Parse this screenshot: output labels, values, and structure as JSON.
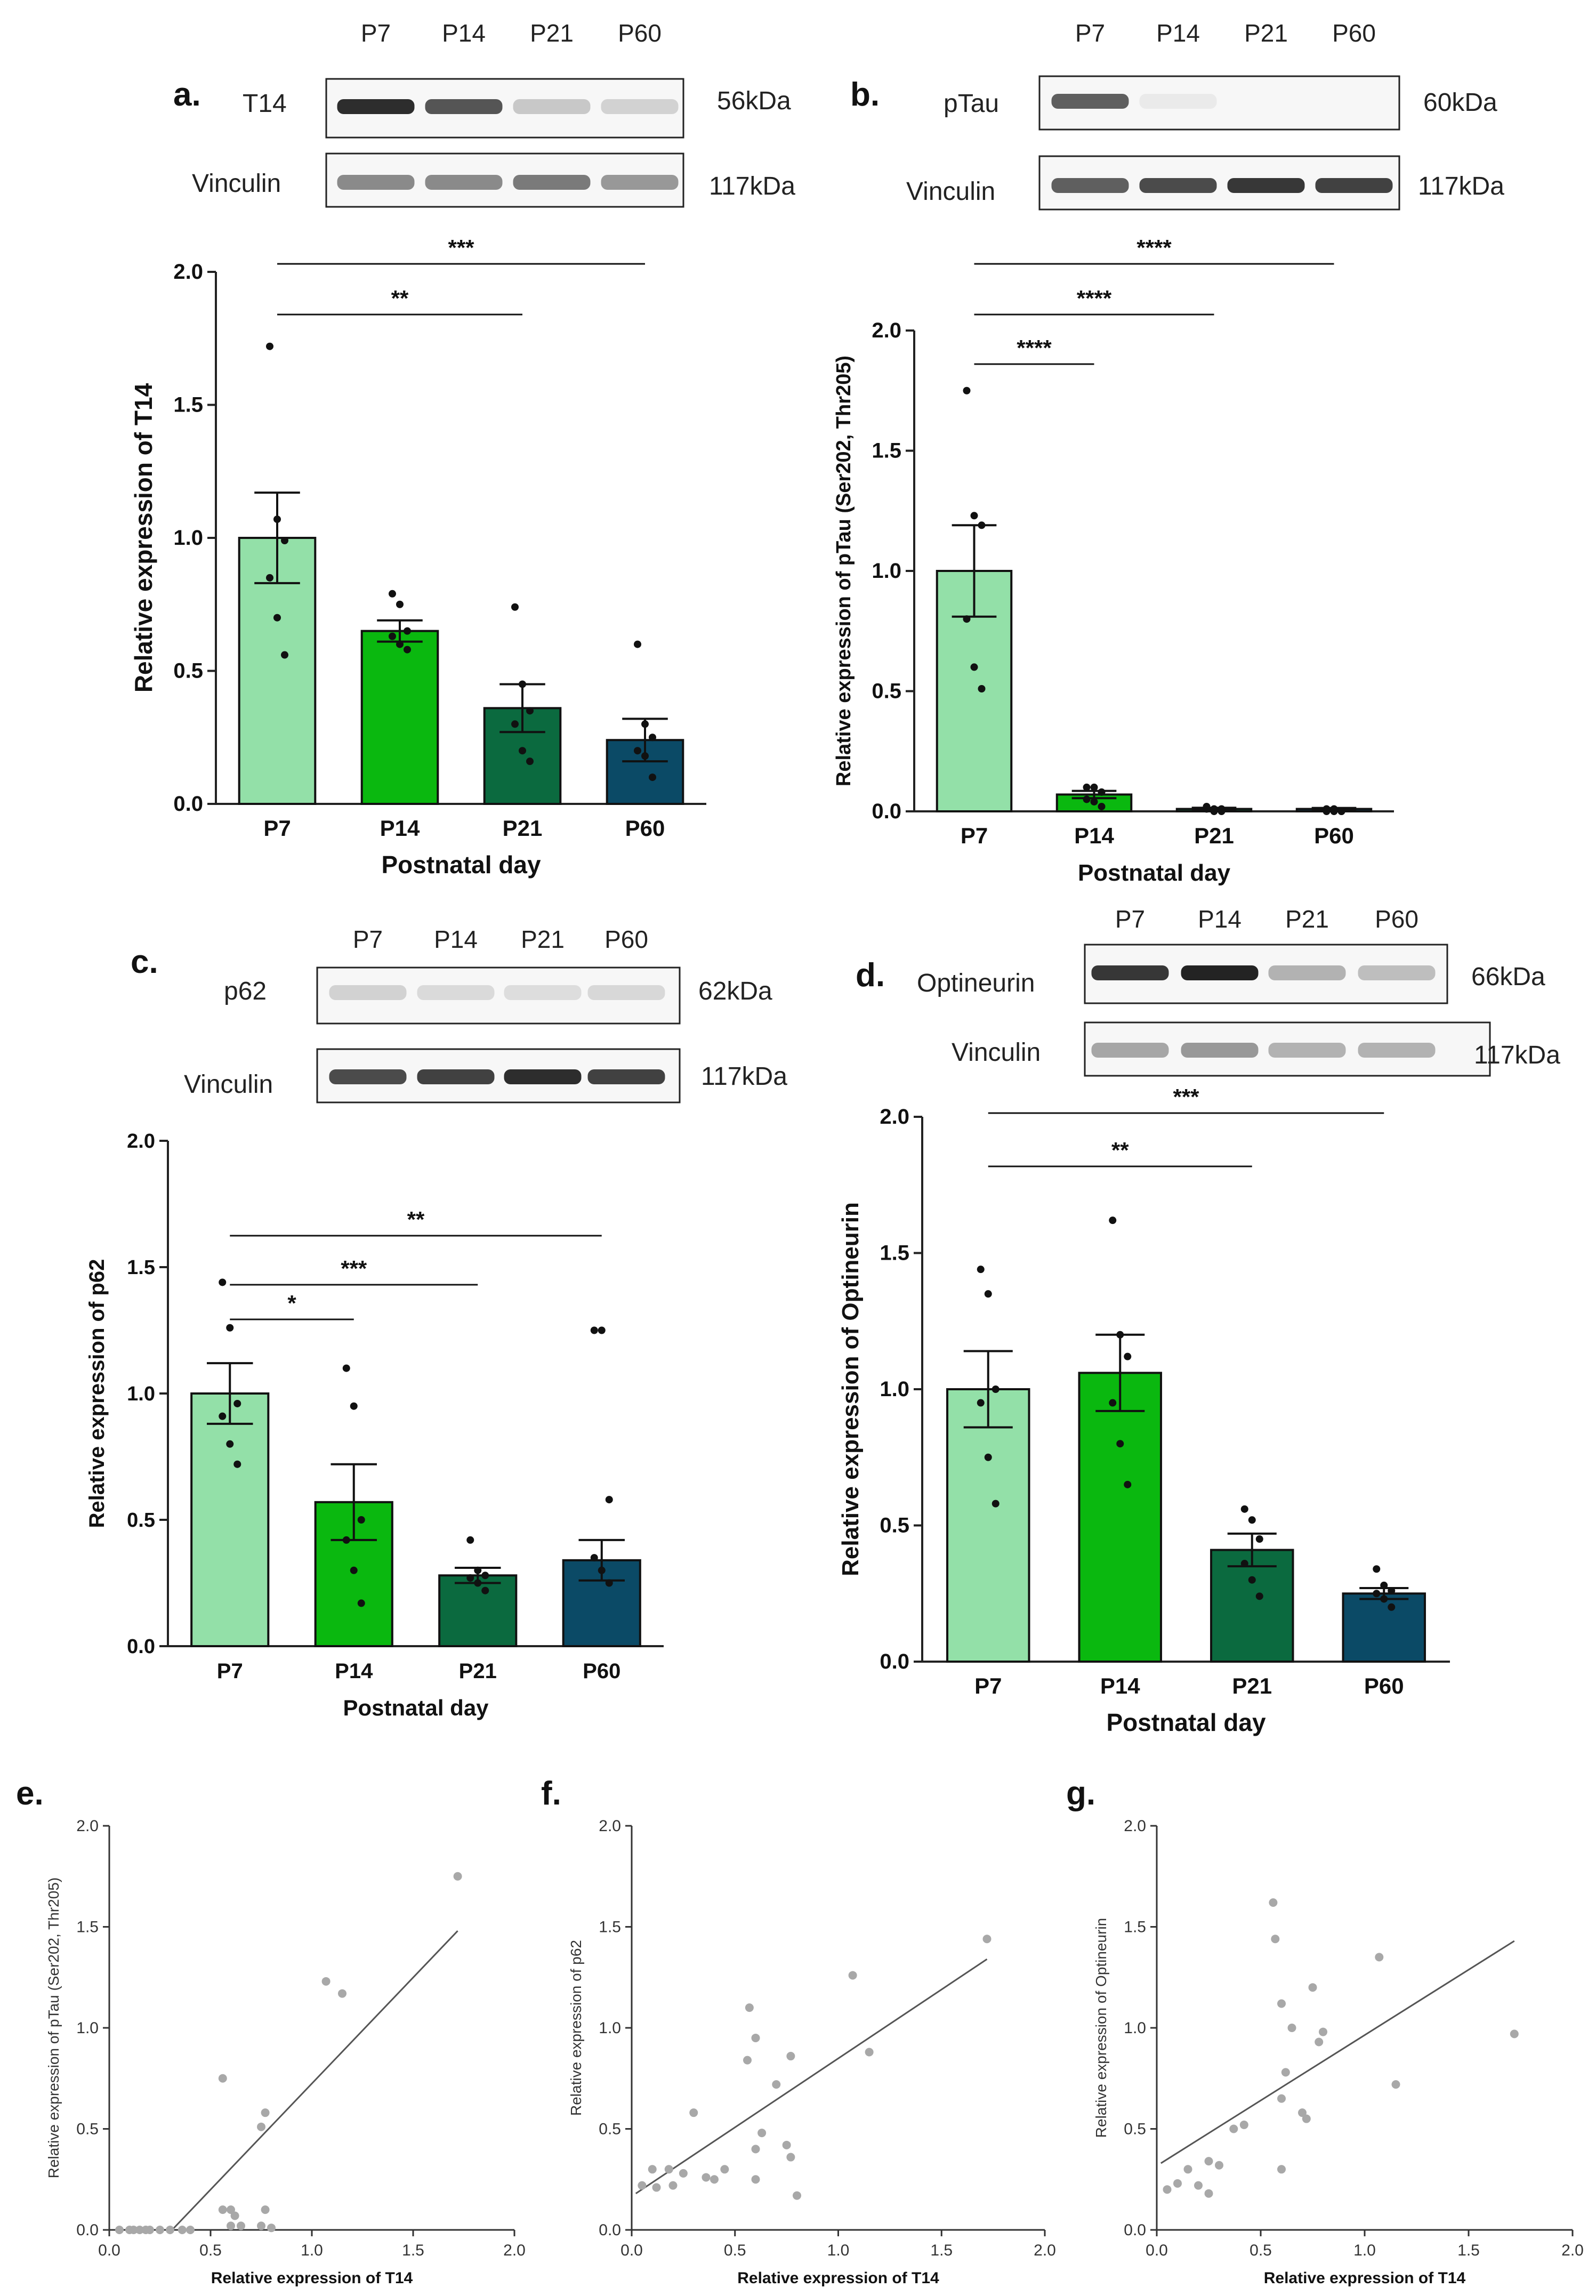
{
  "panels": {
    "a": {
      "label": "a.",
      "lanes": [
        "P7",
        "P14",
        "P21",
        "P60"
      ],
      "blots": [
        {
          "name": "T14",
          "kda": "56kDa",
          "intensity": [
            0.95,
            0.75,
            0.3,
            0.25
          ]
        },
        {
          "name": "Vinculin",
          "kda": "117kDa",
          "intensity": [
            0.55,
            0.55,
            0.6,
            0.5
          ]
        }
      ]
    },
    "b": {
      "label": "b.",
      "lanes": [
        "P7",
        "P14",
        "P21",
        "P60"
      ],
      "blots": [
        {
          "name": "pTau",
          "kda": "60kDa",
          "intensity": [
            0.7,
            0.08,
            0.0,
            0.0
          ]
        },
        {
          "name": "Vinculin",
          "kda": "117kDa",
          "intensity": [
            0.7,
            0.8,
            0.9,
            0.85
          ]
        }
      ]
    },
    "c": {
      "label": "c.",
      "lanes": [
        "P7",
        "P14",
        "P21",
        "P60"
      ],
      "blots": [
        {
          "name": "p62",
          "kda": "62kDa",
          "intensity": [
            0.25,
            0.2,
            0.18,
            0.22
          ]
        },
        {
          "name": "Vinculin",
          "kda": "117kDa",
          "intensity": [
            0.8,
            0.85,
            0.95,
            0.85
          ]
        }
      ]
    },
    "d": {
      "label": "d.",
      "lanes": [
        "P7",
        "P14",
        "P21",
        "P60"
      ],
      "blots": [
        {
          "name": "Optineurin",
          "kda": "66kDa",
          "intensity": [
            0.9,
            1.0,
            0.4,
            0.35
          ]
        },
        {
          "name": "Vinculin",
          "kda": "117kDa",
          "intensity": [
            0.45,
            0.5,
            0.4,
            0.4
          ]
        }
      ]
    },
    "e": {
      "label": "e."
    },
    "f": {
      "label": "f."
    },
    "g": {
      "label": "g."
    }
  },
  "chart_data": [
    {
      "id": "a",
      "type": "bar",
      "categories": [
        "P7",
        "P14",
        "P21",
        "P60"
      ],
      "values": [
        1.0,
        0.65,
        0.36,
        0.24
      ],
      "sem": [
        0.17,
        0.04,
        0.09,
        0.08
      ],
      "points": [
        [
          1.72,
          1.07,
          0.99,
          0.85,
          0.7,
          0.56
        ],
        [
          0.79,
          0.75,
          0.65,
          0.63,
          0.6,
          0.58
        ],
        [
          0.74,
          0.45,
          0.35,
          0.3,
          0.2,
          0.16
        ],
        [
          0.6,
          0.3,
          0.25,
          0.2,
          0.18,
          0.1
        ]
      ],
      "colors": [
        "#93e0a8",
        "#0ab80f",
        "#0b6a3f",
        "#0b4a66"
      ],
      "xlabel": "Postnatal day",
      "ylabel": "Relative expression of T14",
      "ylim": [
        0,
        2.0
      ],
      "yticks": [
        "0.0",
        "0.5",
        "1.0",
        "1.5",
        "2.0"
      ],
      "significance": [
        {
          "from": 0,
          "to": 3,
          "label": "***"
        },
        {
          "from": 0,
          "to": 2,
          "label": "**"
        }
      ]
    },
    {
      "id": "b",
      "type": "bar",
      "categories": [
        "P7",
        "P14",
        "P21",
        "P60"
      ],
      "values": [
        1.0,
        0.07,
        0.01,
        0.01
      ],
      "sem": [
        0.19,
        0.015,
        0.005,
        0.004
      ],
      "points": [
        [
          1.75,
          1.23,
          1.19,
          0.8,
          0.6,
          0.51
        ],
        [
          0.1,
          0.1,
          0.08,
          0.05,
          0.04,
          0.02
        ],
        [
          0.02,
          0.01,
          0.01,
          0.01,
          0.0,
          0.0
        ],
        [
          0.01,
          0.01,
          0.0,
          0.0,
          0.0,
          0.0
        ]
      ],
      "colors": [
        "#93e0a8",
        "#0ab80f",
        "#0b6a3f",
        "#0b4a66"
      ],
      "xlabel": "Postnatal day",
      "ylabel": "Relative expression of pTau (Ser202, Thr205)",
      "ylim": [
        0,
        2.0
      ],
      "yticks": [
        "0.0",
        "0.5",
        "1.0",
        "1.5",
        "2.0"
      ],
      "significance": [
        {
          "from": 0,
          "to": 3,
          "label": "****"
        },
        {
          "from": 0,
          "to": 2,
          "label": "****"
        },
        {
          "from": 0,
          "to": 1,
          "label": "****"
        }
      ]
    },
    {
      "id": "c",
      "type": "bar",
      "categories": [
        "P7",
        "P14",
        "P21",
        "P60"
      ],
      "values": [
        1.0,
        0.57,
        0.28,
        0.34
      ],
      "sem": [
        0.12,
        0.15,
        0.03,
        0.08
      ],
      "points": [
        [
          1.44,
          1.26,
          0.96,
          0.91,
          0.8,
          0.72
        ],
        [
          1.1,
          0.95,
          0.5,
          0.42,
          0.3,
          0.17
        ],
        [
          0.42,
          0.3,
          0.28,
          0.27,
          0.25,
          0.22
        ],
        [
          1.25,
          1.25,
          0.58,
          0.35,
          0.3,
          0.25
        ]
      ],
      "colors": [
        "#93e0a8",
        "#0ab80f",
        "#0b6a3f",
        "#0b4a66"
      ],
      "xlabel": "Postnatal day",
      "ylabel": "Relative expression of p62",
      "ylim": [
        0,
        2.0
      ],
      "yticks": [
        "0.0",
        "0.5",
        "1.0",
        "1.5",
        "2.0"
      ],
      "significance": [
        {
          "from": 0,
          "to": 3,
          "label": "**"
        },
        {
          "from": 0,
          "to": 2,
          "label": "***"
        },
        {
          "from": 0,
          "to": 1,
          "label": "*"
        }
      ]
    },
    {
      "id": "d",
      "type": "bar",
      "categories": [
        "P7",
        "P14",
        "P21",
        "P60"
      ],
      "values": [
        1.0,
        1.06,
        0.41,
        0.25
      ],
      "sem": [
        0.14,
        0.14,
        0.06,
        0.02
      ],
      "points": [
        [
          1.44,
          1.35,
          1.0,
          0.95,
          0.75,
          0.58
        ],
        [
          1.62,
          1.2,
          1.12,
          0.95,
          0.8,
          0.65
        ],
        [
          0.56,
          0.52,
          0.45,
          0.36,
          0.3,
          0.24
        ],
        [
          0.34,
          0.28,
          0.26,
          0.25,
          0.23,
          0.2
        ]
      ],
      "colors": [
        "#93e0a8",
        "#0ab80f",
        "#0b6a3f",
        "#0b4a66"
      ],
      "xlabel": "Postnatal day",
      "ylabel": "Relative expression of Optineurin",
      "ylim": [
        0,
        2.0
      ],
      "yticks": [
        "0.0",
        "0.5",
        "1.0",
        "1.5",
        "2.0"
      ],
      "significance": [
        {
          "from": 0,
          "to": 3,
          "label": "***"
        },
        {
          "from": 0,
          "to": 2,
          "label": "**"
        }
      ]
    },
    {
      "id": "e",
      "type": "scatter",
      "xlabel": "Relative expression of T14",
      "ylabel": "Relative expression of pTau (Ser202, Thr205)",
      "xlim": [
        0,
        2.0
      ],
      "ylim": [
        0,
        2.0
      ],
      "ticks": [
        "0.0",
        "0.5",
        "1.0",
        "1.5",
        "2.0"
      ],
      "points": [
        [
          1.72,
          1.75
        ],
        [
          1.07,
          1.23
        ],
        [
          1.15,
          1.17
        ],
        [
          0.56,
          0.75
        ],
        [
          0.75,
          0.51
        ],
        [
          0.77,
          0.58
        ],
        [
          0.56,
          0.1
        ],
        [
          0.6,
          0.1
        ],
        [
          0.62,
          0.07
        ],
        [
          0.77,
          0.1
        ],
        [
          0.6,
          0.02
        ],
        [
          0.65,
          0.02
        ],
        [
          0.75,
          0.02
        ],
        [
          0.8,
          0.01
        ],
        [
          0.05,
          0.0
        ],
        [
          0.1,
          0.0
        ],
        [
          0.15,
          0.0
        ],
        [
          0.2,
          0.0
        ],
        [
          0.25,
          0.0
        ],
        [
          0.3,
          0.0
        ],
        [
          0.36,
          0.0
        ],
        [
          0.4,
          0.0
        ],
        [
          0.18,
          0.0
        ],
        [
          0.12,
          0.0
        ]
      ],
      "fit": [
        [
          0.31,
          0.0
        ],
        [
          1.72,
          1.48
        ]
      ]
    },
    {
      "id": "f",
      "type": "scatter",
      "xlabel": "Relative expression of T14",
      "ylabel": "Relative expression of p62",
      "xlim": [
        0,
        2.0
      ],
      "ylim": [
        0,
        2.0
      ],
      "ticks": [
        "0.0",
        "0.5",
        "1.0",
        "1.5",
        "2.0"
      ],
      "points": [
        [
          1.72,
          1.44
        ],
        [
          1.07,
          1.26
        ],
        [
          1.15,
          0.88
        ],
        [
          0.56,
          0.84
        ],
        [
          0.57,
          1.1
        ],
        [
          0.6,
          0.95
        ],
        [
          0.7,
          0.72
        ],
        [
          0.77,
          0.86
        ],
        [
          0.63,
          0.48
        ],
        [
          0.6,
          0.4
        ],
        [
          0.75,
          0.42
        ],
        [
          0.77,
          0.36
        ],
        [
          0.8,
          0.17
        ],
        [
          0.6,
          0.25
        ],
        [
          0.36,
          0.26
        ],
        [
          0.4,
          0.25
        ],
        [
          0.3,
          0.58
        ],
        [
          0.45,
          0.3
        ],
        [
          0.1,
          0.3
        ],
        [
          0.18,
          0.3
        ],
        [
          0.2,
          0.22
        ],
        [
          0.25,
          0.28
        ],
        [
          0.12,
          0.21
        ],
        [
          0.05,
          0.22
        ]
      ],
      "fit": [
        [
          0.02,
          0.18
        ],
        [
          1.72,
          1.34
        ]
      ]
    },
    {
      "id": "g",
      "type": "scatter",
      "xlabel": "Relative expression of T14",
      "ylabel": "Relative expression of Optineurin",
      "xlim": [
        0,
        2.0
      ],
      "ylim": [
        0,
        2.0
      ],
      "ticks": [
        "0.0",
        "0.5",
        "1.0",
        "1.5",
        "2.0"
      ],
      "points": [
        [
          1.72,
          0.97
        ],
        [
          1.07,
          1.35
        ],
        [
          1.15,
          0.72
        ],
        [
          0.56,
          1.62
        ],
        [
          0.57,
          1.44
        ],
        [
          0.6,
          1.12
        ],
        [
          0.65,
          1.0
        ],
        [
          0.75,
          1.2
        ],
        [
          0.78,
          0.93
        ],
        [
          0.8,
          0.98
        ],
        [
          0.62,
          0.78
        ],
        [
          0.7,
          0.58
        ],
        [
          0.72,
          0.55
        ],
        [
          0.6,
          0.65
        ],
        [
          0.6,
          0.3
        ],
        [
          0.42,
          0.52
        ],
        [
          0.37,
          0.5
        ],
        [
          0.3,
          0.32
        ],
        [
          0.25,
          0.34
        ],
        [
          0.1,
          0.23
        ],
        [
          0.15,
          0.3
        ],
        [
          0.2,
          0.22
        ],
        [
          0.25,
          0.18
        ],
        [
          0.05,
          0.2
        ]
      ],
      "fit": [
        [
          0.02,
          0.33
        ],
        [
          1.72,
          1.43
        ]
      ]
    }
  ]
}
